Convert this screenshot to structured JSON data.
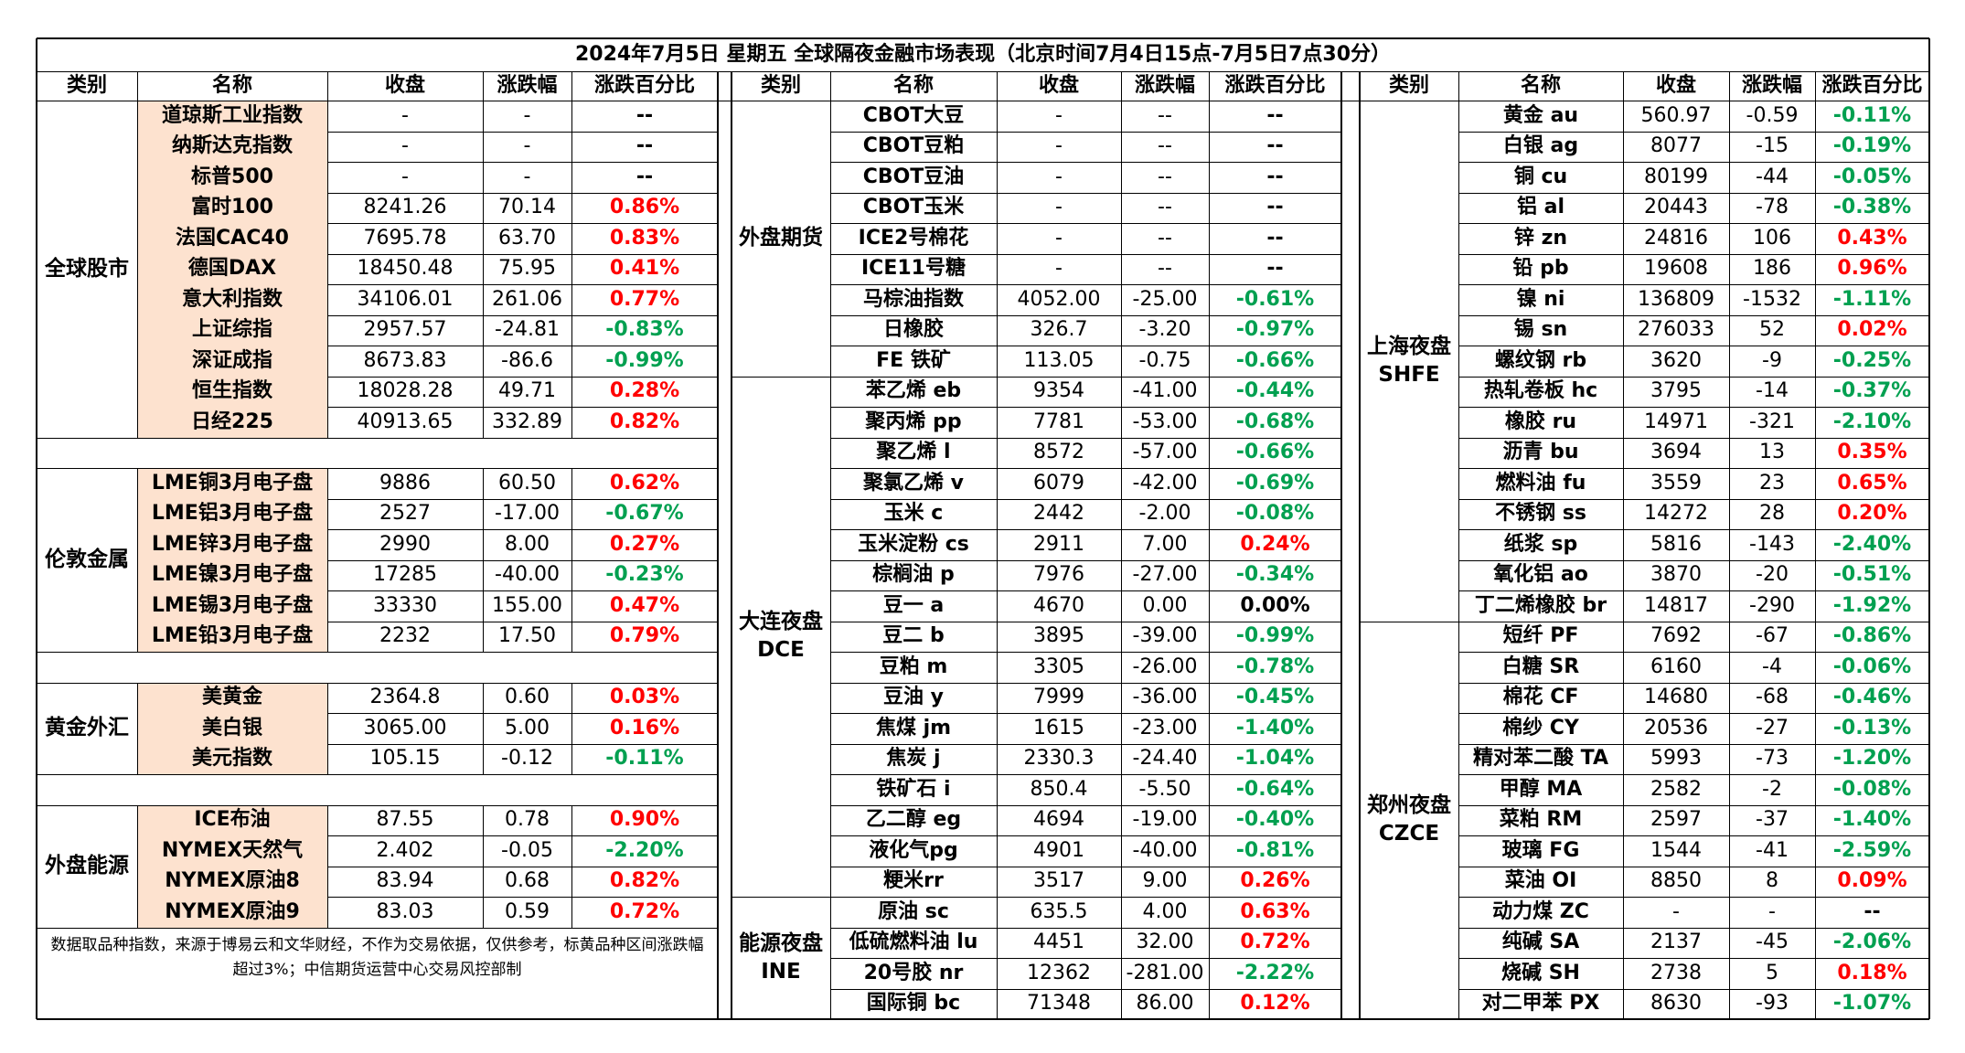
{
  "title": "2024年7月5日 星期五 全球隔夜金融市场表现（北京时间7月4日15点-7月5日7点30分）",
  "headers": [
    "类别",
    "名称",
    "收盘",
    "涨跌幅",
    "涨跌百分比"
  ],
  "colors": {
    "up": "#ff0000",
    "down": "#00a050",
    "name_highlight": "#fde2cf"
  },
  "panel1": {
    "groups": [
      {
        "category": "全球股市",
        "rows": [
          {
            "name": "道琼斯工业指数",
            "close": "-",
            "change": "-",
            "pct": "--",
            "dir": "flat"
          },
          {
            "name": "纳斯达克指数",
            "close": "-",
            "change": "-",
            "pct": "--",
            "dir": "flat"
          },
          {
            "name": "标普500",
            "close": "-",
            "change": "-",
            "pct": "--",
            "dir": "flat"
          },
          {
            "name": "富时100",
            "close": "8241.26",
            "change": "70.14",
            "pct": "0.86%",
            "dir": "up"
          },
          {
            "name": "法国CAC40",
            "close": "7695.78",
            "change": "63.70",
            "pct": "0.83%",
            "dir": "up"
          },
          {
            "name": "德国DAX",
            "close": "18450.48",
            "change": "75.95",
            "pct": "0.41%",
            "dir": "up"
          },
          {
            "name": "意大利指数",
            "close": "34106.01",
            "change": "261.06",
            "pct": "0.77%",
            "dir": "up"
          },
          {
            "name": "上证综指",
            "close": "2957.57",
            "change": "-24.81",
            "pct": "-0.83%",
            "dir": "down"
          },
          {
            "name": "深证成指",
            "close": "8673.83",
            "change": "-86.6",
            "pct": "-0.99%",
            "dir": "down"
          },
          {
            "name": "恒生指数",
            "close": "18028.28",
            "change": "49.71",
            "pct": "0.28%",
            "dir": "up"
          },
          {
            "name": "日经225",
            "close": "40913.65",
            "change": "332.89",
            "pct": "0.82%",
            "dir": "up"
          }
        ]
      },
      {
        "category": "伦敦金属",
        "rows": [
          {
            "name": "LME铜3月电子盘",
            "close": "9886",
            "change": "60.50",
            "pct": "0.62%",
            "dir": "up"
          },
          {
            "name": "LME铝3月电子盘",
            "close": "2527",
            "change": "-17.00",
            "pct": "-0.67%",
            "dir": "down"
          },
          {
            "name": "LME锌3月电子盘",
            "close": "2990",
            "change": "8.00",
            "pct": "0.27%",
            "dir": "up"
          },
          {
            "name": "LME镍3月电子盘",
            "close": "17285",
            "change": "-40.00",
            "pct": "-0.23%",
            "dir": "down"
          },
          {
            "name": "LME锡3月电子盘",
            "close": "33330",
            "change": "155.00",
            "pct": "0.47%",
            "dir": "up"
          },
          {
            "name": "LME铅3月电子盘",
            "close": "2232",
            "change": "17.50",
            "pct": "0.79%",
            "dir": "up"
          }
        ]
      },
      {
        "category": "黄金外汇",
        "rows": [
          {
            "name": "美黄金",
            "close": "2364.8",
            "change": "0.60",
            "pct": "0.03%",
            "dir": "up"
          },
          {
            "name": "美白银",
            "close": "3065.00",
            "change": "5.00",
            "pct": "0.16%",
            "dir": "up"
          },
          {
            "name": "美元指数",
            "close": "105.15",
            "change": "-0.12",
            "pct": "-0.11%",
            "dir": "down"
          }
        ]
      },
      {
        "category": "外盘能源",
        "rows": [
          {
            "name": "ICE布油",
            "close": "87.55",
            "change": "0.78",
            "pct": "0.90%",
            "dir": "up"
          },
          {
            "name": "NYMEX天然气",
            "close": "2.402",
            "change": "-0.05",
            "pct": "-2.20%",
            "dir": "down"
          },
          {
            "name": "NYMEX原油8",
            "close": "83.94",
            "change": "0.68",
            "pct": "0.82%",
            "dir": "up"
          },
          {
            "name": "NYMEX原油9",
            "close": "83.03",
            "change": "0.59",
            "pct": "0.72%",
            "dir": "up"
          }
        ]
      }
    ],
    "note": "数据取品种指数，来源于博易云和文华财经，不作为交易依据，仅供参考，标黄品种区间涨跌幅超过3%；中信期货运营中心交易风控部制"
  },
  "panel2": {
    "groups": [
      {
        "category": "外盘期货",
        "rows": [
          {
            "name": "CBOT大豆",
            "close": "-",
            "change": "--",
            "pct": "--",
            "dir": "flat"
          },
          {
            "name": "CBOT豆粕",
            "close": "-",
            "change": "--",
            "pct": "--",
            "dir": "flat"
          },
          {
            "name": "CBOT豆油",
            "close": "-",
            "change": "--",
            "pct": "--",
            "dir": "flat"
          },
          {
            "name": "CBOT玉米",
            "close": "-",
            "change": "--",
            "pct": "--",
            "dir": "flat"
          },
          {
            "name": "ICE2号棉花",
            "close": "-",
            "change": "--",
            "pct": "--",
            "dir": "flat"
          },
          {
            "name": "ICE11号糖",
            "close": "-",
            "change": "--",
            "pct": "--",
            "dir": "flat"
          },
          {
            "name": "马棕油指数",
            "close": "4052.00",
            "change": "-25.00",
            "pct": "-0.61%",
            "dir": "down"
          },
          {
            "name": "日橡胶",
            "close": "326.7",
            "change": "-3.20",
            "pct": "-0.97%",
            "dir": "down"
          },
          {
            "name": "FE 铁矿",
            "close": "113.05",
            "change": "-0.75",
            "pct": "-0.66%",
            "dir": "down"
          }
        ]
      },
      {
        "category": "大连夜盘\nDCE",
        "rows": [
          {
            "name": "苯乙烯 eb",
            "close": "9354",
            "change": "-41.00",
            "pct": "-0.44%",
            "dir": "down"
          },
          {
            "name": "聚丙烯 pp",
            "close": "7781",
            "change": "-53.00",
            "pct": "-0.68%",
            "dir": "down"
          },
          {
            "name": "聚乙烯 l",
            "close": "8572",
            "change": "-57.00",
            "pct": "-0.66%",
            "dir": "down"
          },
          {
            "name": "聚氯乙烯 v",
            "close": "6079",
            "change": "-42.00",
            "pct": "-0.69%",
            "dir": "down"
          },
          {
            "name": "玉米 c",
            "close": "2442",
            "change": "-2.00",
            "pct": "-0.08%",
            "dir": "down"
          },
          {
            "name": "玉米淀粉 cs",
            "close": "2911",
            "change": "7.00",
            "pct": "0.24%",
            "dir": "up"
          },
          {
            "name": "棕榈油 p",
            "close": "7976",
            "change": "-27.00",
            "pct": "-0.34%",
            "dir": "down"
          },
          {
            "name": "豆一 a",
            "close": "4670",
            "change": "0.00",
            "pct": "0.00%",
            "dir": "flat"
          },
          {
            "name": "豆二 b",
            "close": "3895",
            "change": "-39.00",
            "pct": "-0.99%",
            "dir": "down"
          },
          {
            "name": "豆粕 m",
            "close": "3305",
            "change": "-26.00",
            "pct": "-0.78%",
            "dir": "down"
          },
          {
            "name": "豆油 y",
            "close": "7999",
            "change": "-36.00",
            "pct": "-0.45%",
            "dir": "down"
          },
          {
            "name": "焦煤 jm",
            "close": "1615",
            "change": "-23.00",
            "pct": "-1.40%",
            "dir": "down"
          },
          {
            "name": "焦炭 j",
            "close": "2330.3",
            "change": "-24.40",
            "pct": "-1.04%",
            "dir": "down"
          },
          {
            "name": "铁矿石 i",
            "close": "850.4",
            "change": "-5.50",
            "pct": "-0.64%",
            "dir": "down"
          },
          {
            "name": "乙二醇 eg",
            "close": "4694",
            "change": "-19.00",
            "pct": "-0.40%",
            "dir": "down"
          },
          {
            "name": "液化气pg",
            "close": "4901",
            "change": "-40.00",
            "pct": "-0.81%",
            "dir": "down"
          },
          {
            "name": "粳米rr",
            "close": "3517",
            "change": "9.00",
            "pct": "0.26%",
            "dir": "up"
          }
        ]
      },
      {
        "category": "能源夜盘\nINE",
        "rows": [
          {
            "name": "原油 sc",
            "close": "635.5",
            "change": "4.00",
            "pct": "0.63%",
            "dir": "up"
          },
          {
            "name": "低硫燃料油 lu",
            "close": "4451",
            "change": "32.00",
            "pct": "0.72%",
            "dir": "up"
          },
          {
            "name": "20号胶 nr",
            "close": "12362",
            "change": "-281.00",
            "pct": "-2.22%",
            "dir": "down"
          },
          {
            "name": "国际铜 bc",
            "close": "71348",
            "change": "86.00",
            "pct": "0.12%",
            "dir": "up"
          }
        ]
      }
    ]
  },
  "panel3": {
    "groups": [
      {
        "category": "上海夜盘\nSHFE",
        "rows": [
          {
            "name": "黄金 au",
            "close": "560.97",
            "change": "-0.59",
            "pct": "-0.11%",
            "dir": "down"
          },
          {
            "name": "白银 ag",
            "close": "8077",
            "change": "-15",
            "pct": "-0.19%",
            "dir": "down"
          },
          {
            "name": "铜 cu",
            "close": "80199",
            "change": "-44",
            "pct": "-0.05%",
            "dir": "down"
          },
          {
            "name": "铝 al",
            "close": "20443",
            "change": "-78",
            "pct": "-0.38%",
            "dir": "down"
          },
          {
            "name": "锌 zn",
            "close": "24816",
            "change": "106",
            "pct": "0.43%",
            "dir": "up"
          },
          {
            "name": "铅 pb",
            "close": "19608",
            "change": "186",
            "pct": "0.96%",
            "dir": "up"
          },
          {
            "name": "镍 ni",
            "close": "136809",
            "change": "-1532",
            "pct": "-1.11%",
            "dir": "down"
          },
          {
            "name": "锡 sn",
            "close": "276033",
            "change": "52",
            "pct": "0.02%",
            "dir": "up"
          },
          {
            "name": "螺纹钢 rb",
            "close": "3620",
            "change": "-9",
            "pct": "-0.25%",
            "dir": "down"
          },
          {
            "name": "热轧卷板 hc",
            "close": "3795",
            "change": "-14",
            "pct": "-0.37%",
            "dir": "down"
          },
          {
            "name": "橡胶 ru",
            "close": "14971",
            "change": "-321",
            "pct": "-2.10%",
            "dir": "down"
          },
          {
            "name": "沥青 bu",
            "close": "3694",
            "change": "13",
            "pct": "0.35%",
            "dir": "up"
          },
          {
            "name": "燃料油 fu",
            "close": "3559",
            "change": "23",
            "pct": "0.65%",
            "dir": "up"
          },
          {
            "name": "不锈钢 ss",
            "close": "14272",
            "change": "28",
            "pct": "0.20%",
            "dir": "up"
          },
          {
            "name": "纸浆 sp",
            "close": "5816",
            "change": "-143",
            "pct": "-2.40%",
            "dir": "down"
          },
          {
            "name": "氧化铝 ao",
            "close": "3870",
            "change": "-20",
            "pct": "-0.51%",
            "dir": "down"
          },
          {
            "name": "丁二烯橡胶 br",
            "close": "14817",
            "change": "-290",
            "pct": "-1.92%",
            "dir": "down"
          }
        ]
      },
      {
        "category": "郑州夜盘\nCZCE",
        "rows": [
          {
            "name": "短纤 PF",
            "close": "7692",
            "change": "-67",
            "pct": "-0.86%",
            "dir": "down"
          },
          {
            "name": "白糖 SR",
            "close": "6160",
            "change": "-4",
            "pct": "-0.06%",
            "dir": "down"
          },
          {
            "name": "棉花 CF",
            "close": "14680",
            "change": "-68",
            "pct": "-0.46%",
            "dir": "down"
          },
          {
            "name": "棉纱 CY",
            "close": "20536",
            "change": "-27",
            "pct": "-0.13%",
            "dir": "down"
          },
          {
            "name": "精对苯二酸 TA",
            "close": "5993",
            "change": "-73",
            "pct": "-1.20%",
            "dir": "down"
          },
          {
            "name": "甲醇 MA",
            "close": "2582",
            "change": "-2",
            "pct": "-0.08%",
            "dir": "down"
          },
          {
            "name": "菜粕 RM",
            "close": "2597",
            "change": "-37",
            "pct": "-1.40%",
            "dir": "down"
          },
          {
            "name": "玻璃 FG",
            "close": "1544",
            "change": "-41",
            "pct": "-2.59%",
            "dir": "down"
          },
          {
            "name": "菜油 OI",
            "close": "8850",
            "change": "8",
            "pct": "0.09%",
            "dir": "up"
          },
          {
            "name": "动力煤 ZC",
            "close": "-",
            "change": "-",
            "pct": "--",
            "dir": "flat"
          },
          {
            "name": "纯碱 SA",
            "close": "2137",
            "change": "-45",
            "pct": "-2.06%",
            "dir": "down"
          },
          {
            "name": "烧碱 SH",
            "close": "2738",
            "change": "5",
            "pct": "0.18%",
            "dir": "up"
          },
          {
            "name": "对二甲苯 PX",
            "close": "8630",
            "change": "-93",
            "pct": "-1.07%",
            "dir": "down"
          }
        ]
      }
    ]
  }
}
